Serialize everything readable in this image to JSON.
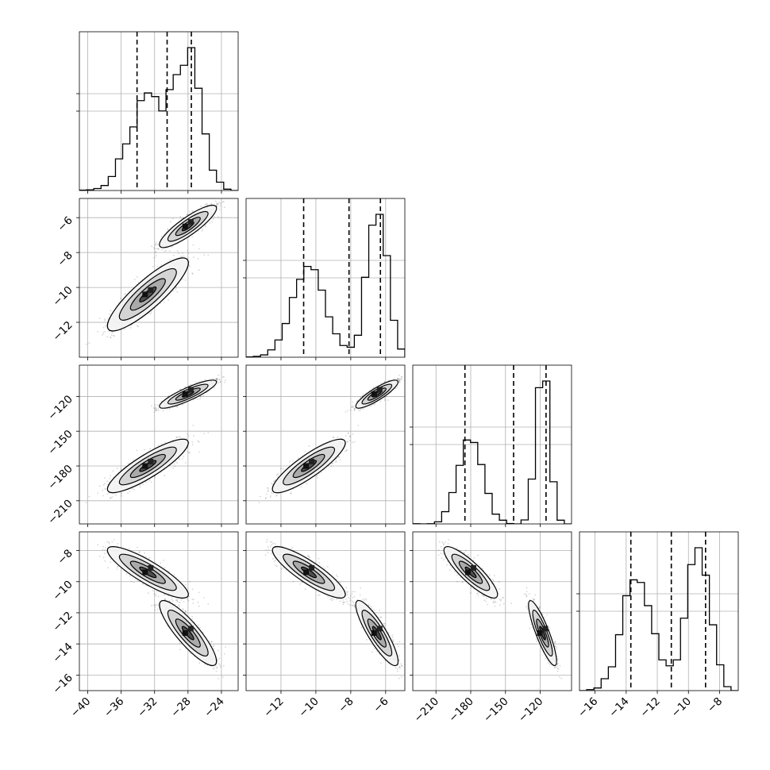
{
  "chart_data": {
    "type": "corner",
    "grid": true,
    "parameters": [
      {
        "range": [
          -41,
          -22
        ],
        "ticks": [
          -40,
          -36,
          -32,
          -28,
          -24
        ],
        "tick_labels": [
          "−40",
          "−36",
          "−32",
          "−28",
          "−24"
        ],
        "quantiles": [
          -34.1,
          -30.5,
          -27.6
        ],
        "modes": [
          {
            "mean": -32.8,
            "sd": 2.2,
            "weight": 0.5
          },
          {
            "mean": -28.0,
            "sd": 1.55,
            "weight": 0.5
          }
        ]
      },
      {
        "range": [
          -14.0,
          -4.9
        ],
        "ticks": [
          -12,
          -10,
          -8,
          -6
        ],
        "tick_labels": [
          "−12",
          "−10",
          "−8",
          "−6"
        ],
        "quantiles": [
          -10.7,
          -8.1,
          -6.3
        ],
        "modes": [
          {
            "mean": -10.4,
            "sd": 0.95,
            "weight": 0.5
          },
          {
            "mean": -6.5,
            "sd": 0.55,
            "weight": 0.5
          }
        ]
      },
      {
        "range": [
          -230,
          -93
        ],
        "ticks": [
          -210,
          -180,
          -150,
          -120
        ],
        "tick_labels": [
          "−210",
          "−180",
          "−150",
          "−120"
        ],
        "quantiles": [
          -185,
          -143,
          -115
        ],
        "modes": [
          {
            "mean": -180,
            "sd": 10.5,
            "weight": 0.5
          },
          {
            "mean": -118,
            "sd": 5.5,
            "weight": 0.5
          }
        ]
      },
      {
        "range": [
          -17.0,
          -6.8
        ],
        "ticks": [
          -16,
          -14,
          -12,
          -10,
          -8
        ],
        "tick_labels": [
          "−16",
          "−14",
          "−12",
          "−10",
          "−8"
        ],
        "quantiles": [
          -13.7,
          -11.1,
          -8.9
        ],
        "modes": [
          {
            "mean": -9.4,
            "sd": 0.75,
            "weight": 0.5
          },
          {
            "mean": -13.3,
            "sd": 0.95,
            "weight": 0.5
          }
        ]
      }
    ]
  }
}
